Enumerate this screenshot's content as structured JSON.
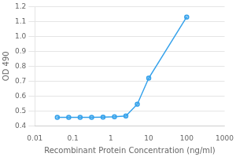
{
  "chart_data": {
    "type": "line",
    "x": [
      0.039,
      0.078,
      0.156,
      0.313,
      0.625,
      1.25,
      2.5,
      5,
      10,
      100
    ],
    "values": [
      0.457,
      0.457,
      0.457,
      0.457,
      0.458,
      0.46,
      0.465,
      0.545,
      0.72,
      1.13
    ],
    "marker": "circle",
    "xlabel": "Recombinant Protein Concentration (ng/ml)",
    "ylabel": "OD 490",
    "log": "x",
    "xlim": [
      0.01,
      1000
    ],
    "xticks": [
      0.01,
      0.1,
      1,
      10,
      100,
      1000
    ],
    "ylim": [
      0.4,
      1.2
    ],
    "yticks": [
      0.4,
      0.5,
      0.6,
      0.7,
      0.8,
      0.9,
      {
        "value": 1.0,
        "label": "1.0"
      },
      1.1,
      1.2
    ],
    "grid": "y"
  }
}
